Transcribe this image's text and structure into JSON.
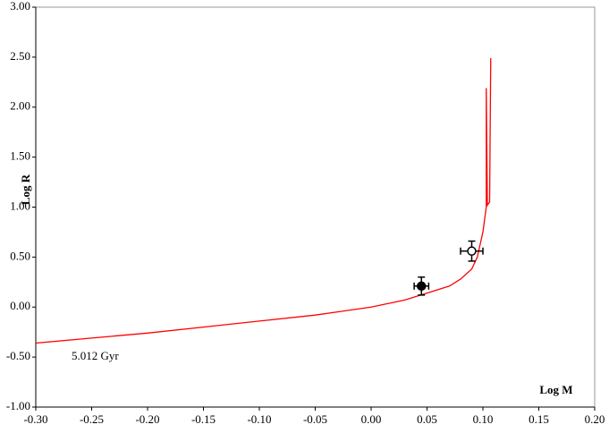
{
  "chart_data": {
    "type": "line",
    "x_label": "Log M",
    "y_label": "Log R",
    "annotation": "5.012 Gyr",
    "xlim": [
      -0.3,
      0.2
    ],
    "ylim": [
      -1.0,
      3.0
    ],
    "xticks": [
      {
        "value": -0.3,
        "label": "-0.30"
      },
      {
        "value": -0.25,
        "label": "-0.25"
      },
      {
        "value": -0.2,
        "label": "-0.20"
      },
      {
        "value": -0.15,
        "label": "-0.15"
      },
      {
        "value": -0.1,
        "label": "-0.10"
      },
      {
        "value": -0.05,
        "label": "-0.05"
      },
      {
        "value": 0,
        "label": "0.00"
      },
      {
        "value": 0.05,
        "label": "0.05"
      },
      {
        "value": 0.1,
        "label": "0.10"
      },
      {
        "value": 0.15,
        "label": "0.15"
      },
      {
        "value": 0.2,
        "label": "0.20"
      }
    ],
    "yticks": [
      {
        "value": -1,
        "label": "-1.00"
      },
      {
        "value": -0.5,
        "label": "-0.50"
      },
      {
        "value": 0,
        "label": "0.00"
      },
      {
        "value": 0.5,
        "label": "0.50"
      },
      {
        "value": 1,
        "label": "1.00"
      },
      {
        "value": 1.5,
        "label": "1.50"
      },
      {
        "value": 2,
        "label": "2.00"
      },
      {
        "value": 2.5,
        "label": "2.50"
      },
      {
        "value": 3,
        "label": "3.00"
      }
    ],
    "series": [
      {
        "color": "#ff0000",
        "x": [
          -0.3,
          -0.25,
          -0.2,
          -0.15,
          -0.1,
          -0.05,
          0.0,
          0.03,
          0.05,
          0.07,
          0.08,
          0.09,
          0.095,
          0.1,
          0.103,
          0.103,
          0.104,
          0.106,
          0.107
        ],
        "values": [
          -0.36,
          -0.31,
          -0.26,
          -0.2,
          -0.14,
          -0.08,
          0.0,
          0.07,
          0.14,
          0.21,
          0.28,
          0.38,
          0.5,
          0.75,
          1.0,
          2.19,
          1.02,
          1.05,
          2.49
        ]
      }
    ],
    "points": [
      {
        "x": 0.045,
        "y": 0.21,
        "xerr": 0.0065,
        "yerr": 0.09,
        "filled": true
      },
      {
        "x": 0.09,
        "y": 0.56,
        "xerr": 0.01,
        "yerr": 0.1,
        "filled": false
      }
    ]
  }
}
